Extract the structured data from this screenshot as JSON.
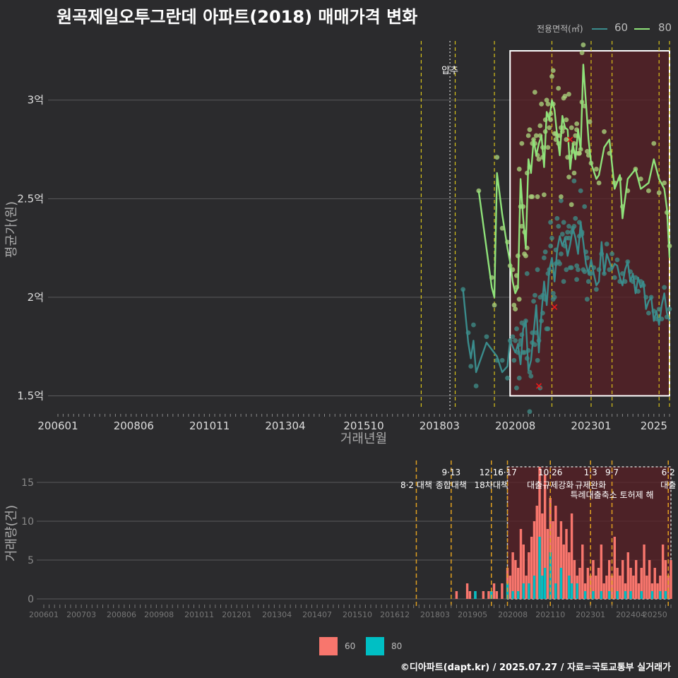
{
  "title": "원곡제일오투그란데 아파트(2018) 매매가격 변화",
  "legend_top": {
    "title": "전용면적(㎡)",
    "items": [
      "60",
      "80"
    ]
  },
  "legend_bottom": {
    "items": [
      "60",
      "80"
    ]
  },
  "footer": "©디아파트(dapt.kr) / 2025.07.27 / 자료=국토교통부 실거래가",
  "colors": {
    "bg": "#2b2b2d",
    "grid": "#5a5a5c",
    "s60_line": "#3a8c8c",
    "s60_pt": "#3f8a84",
    "s80_line": "#8fe27a",
    "s80_pt": "#a8d07a",
    "bar60": "#f8766d",
    "bar80": "#00bfc4",
    "event": "#d8c21a",
    "event_bar": "#e0a020",
    "highlight_fill": "#5a2025",
    "highlight_stroke": "#ffffff",
    "marker": "#e8191a"
  },
  "chart_data": [
    {
      "type": "line",
      "xlabel": "거래년월",
      "ylabel": "평균가(원)",
      "x_ticks": [
        "200601",
        "200806",
        "201011",
        "201304",
        "201510",
        "201803",
        "202008",
        "202301",
        "2025"
      ],
      "y_ticks": [
        "1.5억",
        "2억",
        "2.5억",
        "3억"
      ],
      "ylim": [
        1.43,
        3.3
      ],
      "ylim_units": "억",
      "annotation": "압추",
      "highlight_box": {
        "x": [
          "2020-06",
          "2025-07"
        ],
        "y": [
          1.5,
          3.25
        ]
      },
      "series": [
        {
          "name": "60",
          "x": [
            "2018-12",
            "2019-02",
            "2019-03",
            "2019-04",
            "2019-05",
            "2019-09",
            "2020-01",
            "2020-03",
            "2020-05",
            "2020-06",
            "2020-07",
            "2020-08",
            "2020-09",
            "2020-10",
            "2020-11",
            "2020-12",
            "2021-01",
            "2021-02",
            "2021-03",
            "2021-04",
            "2021-05",
            "2021-06",
            "2021-07",
            "2021-08",
            "2021-09",
            "2021-10",
            "2021-11",
            "2021-12",
            "2022-01",
            "2022-02",
            "2022-03",
            "2022-04",
            "2022-05",
            "2022-06",
            "2022-07",
            "2022-08",
            "2022-09",
            "2022-10",
            "2022-11",
            "2022-12",
            "2023-01",
            "2023-02",
            "2023-03",
            "2023-04",
            "2023-05",
            "2023-06",
            "2023-07",
            "2023-08",
            "2023-09",
            "2023-10",
            "2023-11",
            "2023-12",
            "2024-01",
            "2024-02",
            "2024-03",
            "2024-04",
            "2024-05",
            "2024-06",
            "2024-07",
            "2024-08",
            "2024-09",
            "2024-10",
            "2024-11",
            "2024-12",
            "2025-01",
            "2025-02",
            "2025-03",
            "2025-04",
            "2025-05",
            "2025-06",
            "2025-07"
          ],
          "values": [
            2.04,
            1.77,
            1.69,
            1.78,
            1.62,
            1.77,
            1.7,
            1.62,
            1.65,
            1.78,
            1.75,
            1.72,
            1.76,
            1.66,
            1.84,
            1.88,
            1.63,
            1.68,
            1.82,
            1.96,
            1.72,
            1.92,
            2.08,
            1.96,
            2.14,
            2.2,
            2.08,
            2.24,
            2.31,
            2.26,
            2.3,
            2.21,
            2.27,
            2.35,
            2.3,
            2.22,
            2.38,
            2.28,
            2.17,
            2.12,
            2.19,
            2.12,
            2.06,
            2.08,
            2.28,
            2.12,
            2.22,
            2.18,
            2.14,
            2.17,
            2.16,
            2.1,
            2.06,
            2.14,
            2.18,
            2.08,
            2.12,
            2.02,
            2.1,
            2.05,
            2.08,
            1.94,
            1.98,
            2.0,
            1.88,
            1.93,
            1.86,
            1.96,
            2.02,
            1.92,
            1.88
          ]
        },
        {
          "name": "80",
          "x": [
            "2019-06",
            "2019-11",
            "2019-12",
            "2020-01",
            "2020-03",
            "2020-05",
            "2020-06",
            "2020-07",
            "2020-08",
            "2020-09",
            "2020-10",
            "2020-11",
            "2020-12",
            "2021-01",
            "2021-02",
            "2021-03",
            "2021-04",
            "2021-05",
            "2021-06",
            "2021-07",
            "2021-08",
            "2021-09",
            "2021-10",
            "2021-11",
            "2021-12",
            "2022-01",
            "2022-02",
            "2022-03",
            "2022-04",
            "2022-05",
            "2022-06",
            "2022-07",
            "2022-08",
            "2022-09",
            "2022-10",
            "2022-12",
            "2023-01",
            "2023-03",
            "2023-04",
            "2023-06",
            "2023-08",
            "2023-10",
            "2023-12",
            "2024-01",
            "2024-03",
            "2024-06",
            "2024-08",
            "2024-11",
            "2025-01",
            "2025-03",
            "2025-05",
            "2025-06",
            "2025-07"
          ],
          "values": [
            2.54,
            2.05,
            2.0,
            2.63,
            2.42,
            2.25,
            2.18,
            2.08,
            2.02,
            2.05,
            2.6,
            2.4,
            2.25,
            2.7,
            2.63,
            2.8,
            2.72,
            2.78,
            2.82,
            2.66,
            2.94,
            2.9,
            3.0,
            2.95,
            2.82,
            2.72,
            2.92,
            2.86,
            2.85,
            2.65,
            2.78,
            2.7,
            2.85,
            2.75,
            3.18,
            2.8,
            2.68,
            2.6,
            2.62,
            2.76,
            2.8,
            2.55,
            2.62,
            2.4,
            2.6,
            2.65,
            2.55,
            2.58,
            2.7,
            2.6,
            2.55,
            2.45,
            2.2
          ]
        }
      ]
    },
    {
      "type": "bar",
      "xlabel": "",
      "ylabel": "거래량(건)",
      "x_ticks": [
        "200601",
        "200703",
        "200806",
        "200908",
        "201011",
        "201201",
        "201304",
        "201407",
        "201510",
        "201612",
        "201803",
        "201905",
        "202008",
        "202110",
        "202301",
        "202404",
        "20250"
      ],
      "y_ticks": [
        "0",
        "5",
        "10",
        "15"
      ],
      "ylim": [
        0,
        18
      ],
      "highlight_box": {
        "x": [
          "2020-06",
          "2025-07"
        ],
        "y": [
          0,
          17
        ]
      },
      "events": [
        {
          "date": "2017-08",
          "label": "8·2 대책"
        },
        {
          "date": "2018-09",
          "label_top": "9·13",
          "label": "종합대책"
        },
        {
          "date": "2019-12",
          "label_top": "12·16",
          "label": "18차대책"
        },
        {
          "date": "2020-06",
          "label_top": "6·17",
          "label": ""
        },
        {
          "date": "2021-10",
          "label_top": "10·26",
          "label": "대출규제강화"
        },
        {
          "date": "2023-01",
          "label_top": "1·3",
          "label": "규제완화"
        },
        {
          "date": "2023-09",
          "label_top": "9·7",
          "label": "특례대출축소 토허제 해"
        },
        {
          "date": "2025-06",
          "label_top": "6·2",
          "label": "대출"
        }
      ],
      "series": [
        {
          "name": "60",
          "x": [
            "2018-11",
            "2019-03",
            "2019-04",
            "2019-06",
            "2019-09",
            "2019-11",
            "2019-12",
            "2020-01",
            "2020-02",
            "2020-04",
            "2020-06",
            "2020-07",
            "2020-08",
            "2020-09",
            "2020-10",
            "2020-11",
            "2020-12",
            "2021-01",
            "2021-02",
            "2021-03",
            "2021-04",
            "2021-05",
            "2021-06",
            "2021-07",
            "2021-08",
            "2021-09",
            "2021-10",
            "2021-11",
            "2021-12",
            "2022-01",
            "2022-02",
            "2022-03",
            "2022-04",
            "2022-05",
            "2022-06",
            "2022-07",
            "2022-08",
            "2022-09",
            "2022-10",
            "2022-11",
            "2022-12",
            "2023-01",
            "2023-02",
            "2023-03",
            "2023-04",
            "2023-05",
            "2023-06",
            "2023-07",
            "2023-08",
            "2023-09",
            "2023-10",
            "2023-11",
            "2023-12",
            "2024-01",
            "2024-02",
            "2024-03",
            "2024-04",
            "2024-05",
            "2024-06",
            "2024-07",
            "2024-08",
            "2024-09",
            "2024-10",
            "2024-11",
            "2024-12",
            "2025-01",
            "2025-02",
            "2025-03",
            "2025-04",
            "2025-05",
            "2025-06",
            "2025-07"
          ],
          "values": [
            1,
            2,
            1,
            1,
            1,
            1,
            1,
            2,
            1,
            2,
            4,
            3,
            6,
            5,
            4,
            9,
            7,
            3,
            6,
            8,
            10,
            12,
            17,
            11,
            16,
            9,
            13,
            10,
            12,
            8,
            10,
            7,
            9,
            6,
            11,
            5,
            3,
            4,
            7,
            2,
            4,
            3,
            5,
            3,
            4,
            7,
            2,
            3,
            5,
            3,
            8,
            4,
            3,
            5,
            2,
            6,
            4,
            3,
            5,
            2,
            4,
            7,
            3,
            5,
            2,
            4,
            2,
            3,
            7,
            5,
            3,
            5
          ]
        },
        {
          "name": "80",
          "x": [
            "2019-06",
            "2019-12",
            "2020-06",
            "2020-08",
            "2020-10",
            "2020-12",
            "2021-02",
            "2021-04",
            "2021-06",
            "2021-07",
            "2021-08",
            "2021-10",
            "2021-12",
            "2022-02",
            "2022-05",
            "2022-06",
            "2022-08",
            "2022-11",
            "2023-02",
            "2023-05",
            "2023-08",
            "2023-11",
            "2024-02",
            "2024-04",
            "2024-08",
            "2024-12",
            "2025-03",
            "2025-05"
          ],
          "values": [
            1,
            1,
            2,
            1,
            1,
            2,
            2,
            3,
            8,
            3,
            4,
            6,
            2,
            4,
            3,
            2,
            2,
            1,
            1,
            1,
            1,
            1,
            1,
            1,
            1,
            1,
            1,
            1
          ]
        }
      ]
    }
  ]
}
